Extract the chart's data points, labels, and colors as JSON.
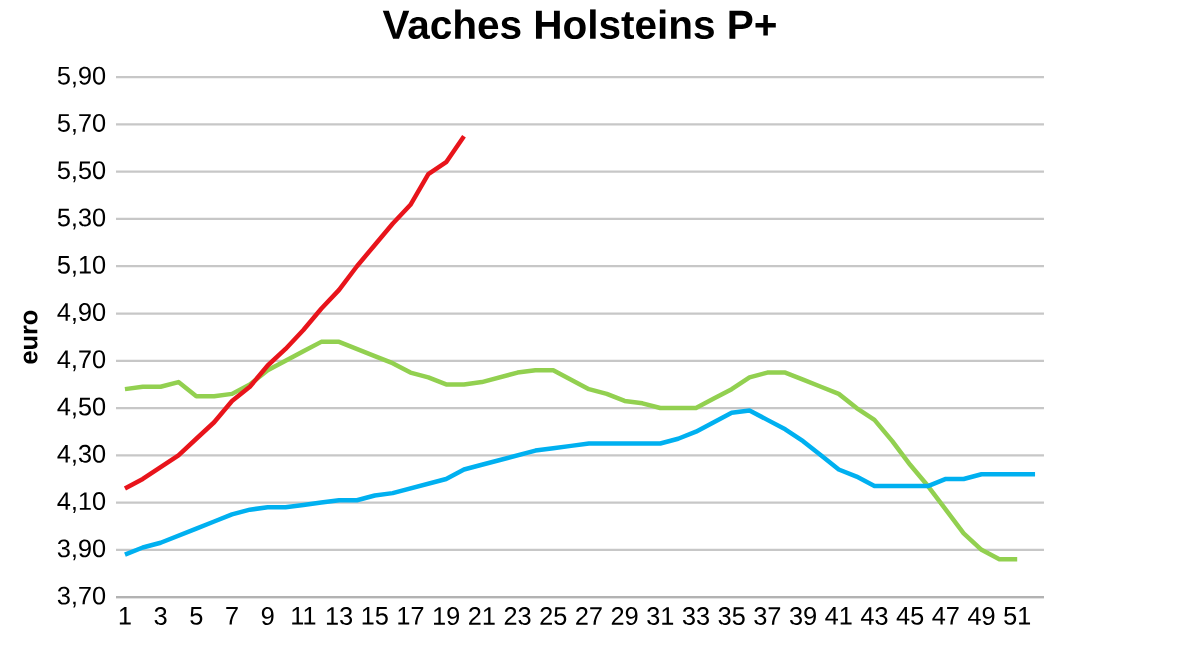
{
  "chart_data": {
    "type": "line",
    "title": "Vaches Holsteins P+",
    "ylabel": "euro",
    "categories": [
      "1",
      null,
      "3",
      null,
      "5",
      null,
      "7",
      null,
      "9",
      null,
      "11",
      null,
      "13",
      null,
      "15",
      null,
      "17",
      null,
      "19",
      null,
      "21",
      null,
      "23",
      null,
      "25",
      null,
      "27",
      null,
      "29",
      null,
      "31",
      null,
      "33",
      null,
      "35",
      null,
      "37",
      null,
      "39",
      null,
      "41",
      null,
      "43",
      null,
      "45",
      null,
      "47",
      null,
      "49",
      null,
      "51",
      null
    ],
    "ylim": [
      3.7,
      5.9
    ],
    "yticks": [
      {
        "value": 3.7,
        "label": "3,70"
      },
      {
        "value": 3.9,
        "label": "3,90"
      },
      {
        "value": 4.1,
        "label": "4,10"
      },
      {
        "value": 4.3,
        "label": "4,30"
      },
      {
        "value": 4.5,
        "label": "4,50"
      },
      {
        "value": 4.7,
        "label": "4,70"
      },
      {
        "value": 4.9,
        "label": "4,90"
      },
      {
        "value": 5.1,
        "label": "5,10"
      },
      {
        "value": 5.3,
        "label": "5,30"
      },
      {
        "value": 5.5,
        "label": "5,50"
      },
      {
        "value": 5.7,
        "label": "5,70"
      },
      {
        "value": 5.9,
        "label": "5,90"
      }
    ],
    "grid": "y",
    "line_style": "solid",
    "marker": "none",
    "series": [
      {
        "color": "#92d050",
        "values": [
          4.58,
          4.59,
          4.59,
          4.61,
          4.55,
          4.55,
          4.56,
          4.6,
          4.66,
          4.7,
          4.74,
          4.78,
          4.78,
          4.75,
          4.72,
          4.69,
          4.65,
          4.63,
          4.6,
          4.6,
          4.61,
          4.63,
          4.65,
          4.66,
          4.66,
          4.62,
          4.58,
          4.56,
          4.53,
          4.52,
          4.5,
          4.5,
          4.5,
          4.54,
          4.58,
          4.63,
          4.65,
          4.65,
          4.62,
          4.59,
          4.56,
          4.5,
          4.45,
          4.36,
          4.26,
          4.17,
          4.07,
          3.97,
          3.9,
          3.86,
          3.86,
          null
        ]
      },
      {
        "color": "#00b0f0",
        "values": [
          3.88,
          3.91,
          3.93,
          3.96,
          3.99,
          4.02,
          4.05,
          4.07,
          4.08,
          4.08,
          4.09,
          4.1,
          4.11,
          4.11,
          4.13,
          4.14,
          4.16,
          4.18,
          4.2,
          4.24,
          4.26,
          4.28,
          4.3,
          4.32,
          4.33,
          4.34,
          4.35,
          4.35,
          4.35,
          4.35,
          4.35,
          4.37,
          4.4,
          4.44,
          4.48,
          4.49,
          4.45,
          4.41,
          4.36,
          4.3,
          4.24,
          4.21,
          4.17,
          4.17,
          4.17,
          4.17,
          4.2,
          4.2,
          4.22,
          4.22,
          4.22,
          4.22
        ]
      },
      {
        "color": "#e8141b",
        "values": [
          4.16,
          4.2,
          4.25,
          4.3,
          4.37,
          4.44,
          4.53,
          4.59,
          4.68,
          4.75,
          4.83,
          4.92,
          5.0,
          5.1,
          5.19,
          5.28,
          5.36,
          5.49,
          5.54,
          5.65,
          null,
          null,
          null,
          null,
          null,
          null,
          null,
          null,
          null,
          null,
          null,
          null,
          null,
          null,
          null,
          null,
          null,
          null,
          null,
          null,
          null,
          null,
          null,
          null,
          null,
          null,
          null,
          null,
          null,
          null,
          null,
          null
        ]
      }
    ]
  }
}
